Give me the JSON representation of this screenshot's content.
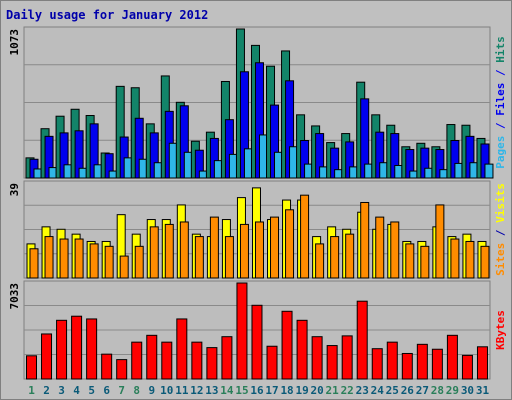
{
  "title": "Daily usage for January 2012",
  "colors": {
    "background": "#c0c0c0",
    "plot_bg": "#bdbdbd",
    "hits": "#138469",
    "files": "#0000ee",
    "pages": "#2fb6e8",
    "visits": "#ffff00",
    "sites": "#ff8c00",
    "kbytes": "#ff0000",
    "title": "#0000aa",
    "day_weekday": "#0a5a78",
    "day_weekend": "#2a7f5a"
  },
  "chart_data": [
    {
      "type": "bar",
      "panel": "top",
      "y_max_label": "1073",
      "y_label_parts": [
        {
          "text": "Pages",
          "color": "pages"
        },
        {
          "text": " / ",
          "color": "files"
        },
        {
          "text": "Files",
          "color": "files"
        },
        {
          "text": " / ",
          "color": "files"
        },
        {
          "text": "Hits",
          "color": "hits"
        }
      ],
      "ylim": [
        0,
        1073
      ],
      "categories": [
        "1",
        "2",
        "3",
        "4",
        "5",
        "6",
        "7",
        "8",
        "9",
        "10",
        "11",
        "12",
        "13",
        "14",
        "15",
        "16",
        "17",
        "18",
        "19",
        "20",
        "21",
        "22",
        "23",
        "24",
        "25",
        "26",
        "27",
        "28",
        "29",
        "30",
        "31"
      ],
      "series": [
        {
          "name": "Hits",
          "color": "hits",
          "values": [
            145,
            355,
            445,
            495,
            450,
            180,
            660,
            650,
            390,
            735,
            545,
            265,
            330,
            695,
            1073,
            955,
            805,
            915,
            455,
            375,
            255,
            320,
            690,
            455,
            380,
            225,
            250,
            225,
            385,
            380,
            285
          ]
        },
        {
          "name": "Files",
          "color": "files",
          "values": [
            135,
            300,
            325,
            340,
            390,
            175,
            295,
            430,
            325,
            480,
            520,
            200,
            285,
            420,
            765,
            830,
            525,
            700,
            270,
            320,
            215,
            260,
            570,
            330,
            320,
            205,
            215,
            205,
            270,
            300,
            245
          ]
        },
        {
          "name": "Pages",
          "color": "pages",
          "values": [
            65,
            75,
            95,
            70,
            95,
            50,
            145,
            135,
            110,
            250,
            185,
            50,
            125,
            170,
            210,
            310,
            185,
            225,
            100,
            80,
            60,
            80,
            100,
            110,
            90,
            50,
            70,
            60,
            105,
            110,
            100
          ]
        }
      ]
    },
    {
      "type": "bar",
      "panel": "middle",
      "y_max_label": "39",
      "y_label_parts": [
        {
          "text": "Sites",
          "color": "sites"
        },
        {
          "text": " / ",
          "color": "title"
        },
        {
          "text": "Visits",
          "color": "visits"
        }
      ],
      "ylim": [
        0,
        39
      ],
      "categories": [
        "1",
        "2",
        "3",
        "4",
        "5",
        "6",
        "7",
        "8",
        "9",
        "10",
        "11",
        "12",
        "13",
        "14",
        "15",
        "16",
        "17",
        "18",
        "19",
        "20",
        "21",
        "22",
        "23",
        "24",
        "25",
        "26",
        "27",
        "28",
        "29",
        "30",
        "31"
      ],
      "series": [
        {
          "name": "Visits",
          "color": "visits",
          "values": [
            14,
            21,
            20,
            18,
            15,
            15,
            26,
            18,
            24,
            24,
            30,
            18,
            17,
            24,
            33,
            37,
            24,
            32,
            32,
            17,
            21,
            20,
            27,
            20,
            22,
            15,
            15,
            21,
            17,
            18,
            15
          ]
        },
        {
          "name": "Sites",
          "color": "sites",
          "values": [
            12,
            17,
            16,
            16,
            14,
            13,
            9,
            13,
            21,
            22,
            23,
            17,
            25,
            17,
            22,
            23,
            25,
            28,
            34,
            14,
            17,
            18,
            31,
            25,
            23,
            14,
            13,
            30,
            16,
            15,
            13
          ]
        }
      ]
    },
    {
      "type": "bar",
      "panel": "bottom",
      "y_max_label": "7033",
      "y_label_parts": [
        {
          "text": "KBytes",
          "color": "kbytes"
        }
      ],
      "ylim": [
        0,
        7033
      ],
      "categories": [
        "1",
        "2",
        "3",
        "4",
        "5",
        "6",
        "7",
        "8",
        "9",
        "10",
        "11",
        "12",
        "13",
        "14",
        "15",
        "16",
        "17",
        "18",
        "19",
        "20",
        "21",
        "22",
        "23",
        "24",
        "25",
        "26",
        "27",
        "28",
        "29",
        "30",
        "31"
      ],
      "series": [
        {
          "name": "KBytes",
          "color": "kbytes",
          "values": [
            1700,
            3300,
            4300,
            4600,
            4400,
            1820,
            1420,
            2700,
            3200,
            2700,
            4400,
            2700,
            2300,
            3100,
            7033,
            5400,
            2400,
            4960,
            4300,
            3100,
            2450,
            3160,
            5700,
            2220,
            2700,
            1870,
            2540,
            2180,
            3200,
            1730,
            2360
          ]
        }
      ]
    }
  ]
}
